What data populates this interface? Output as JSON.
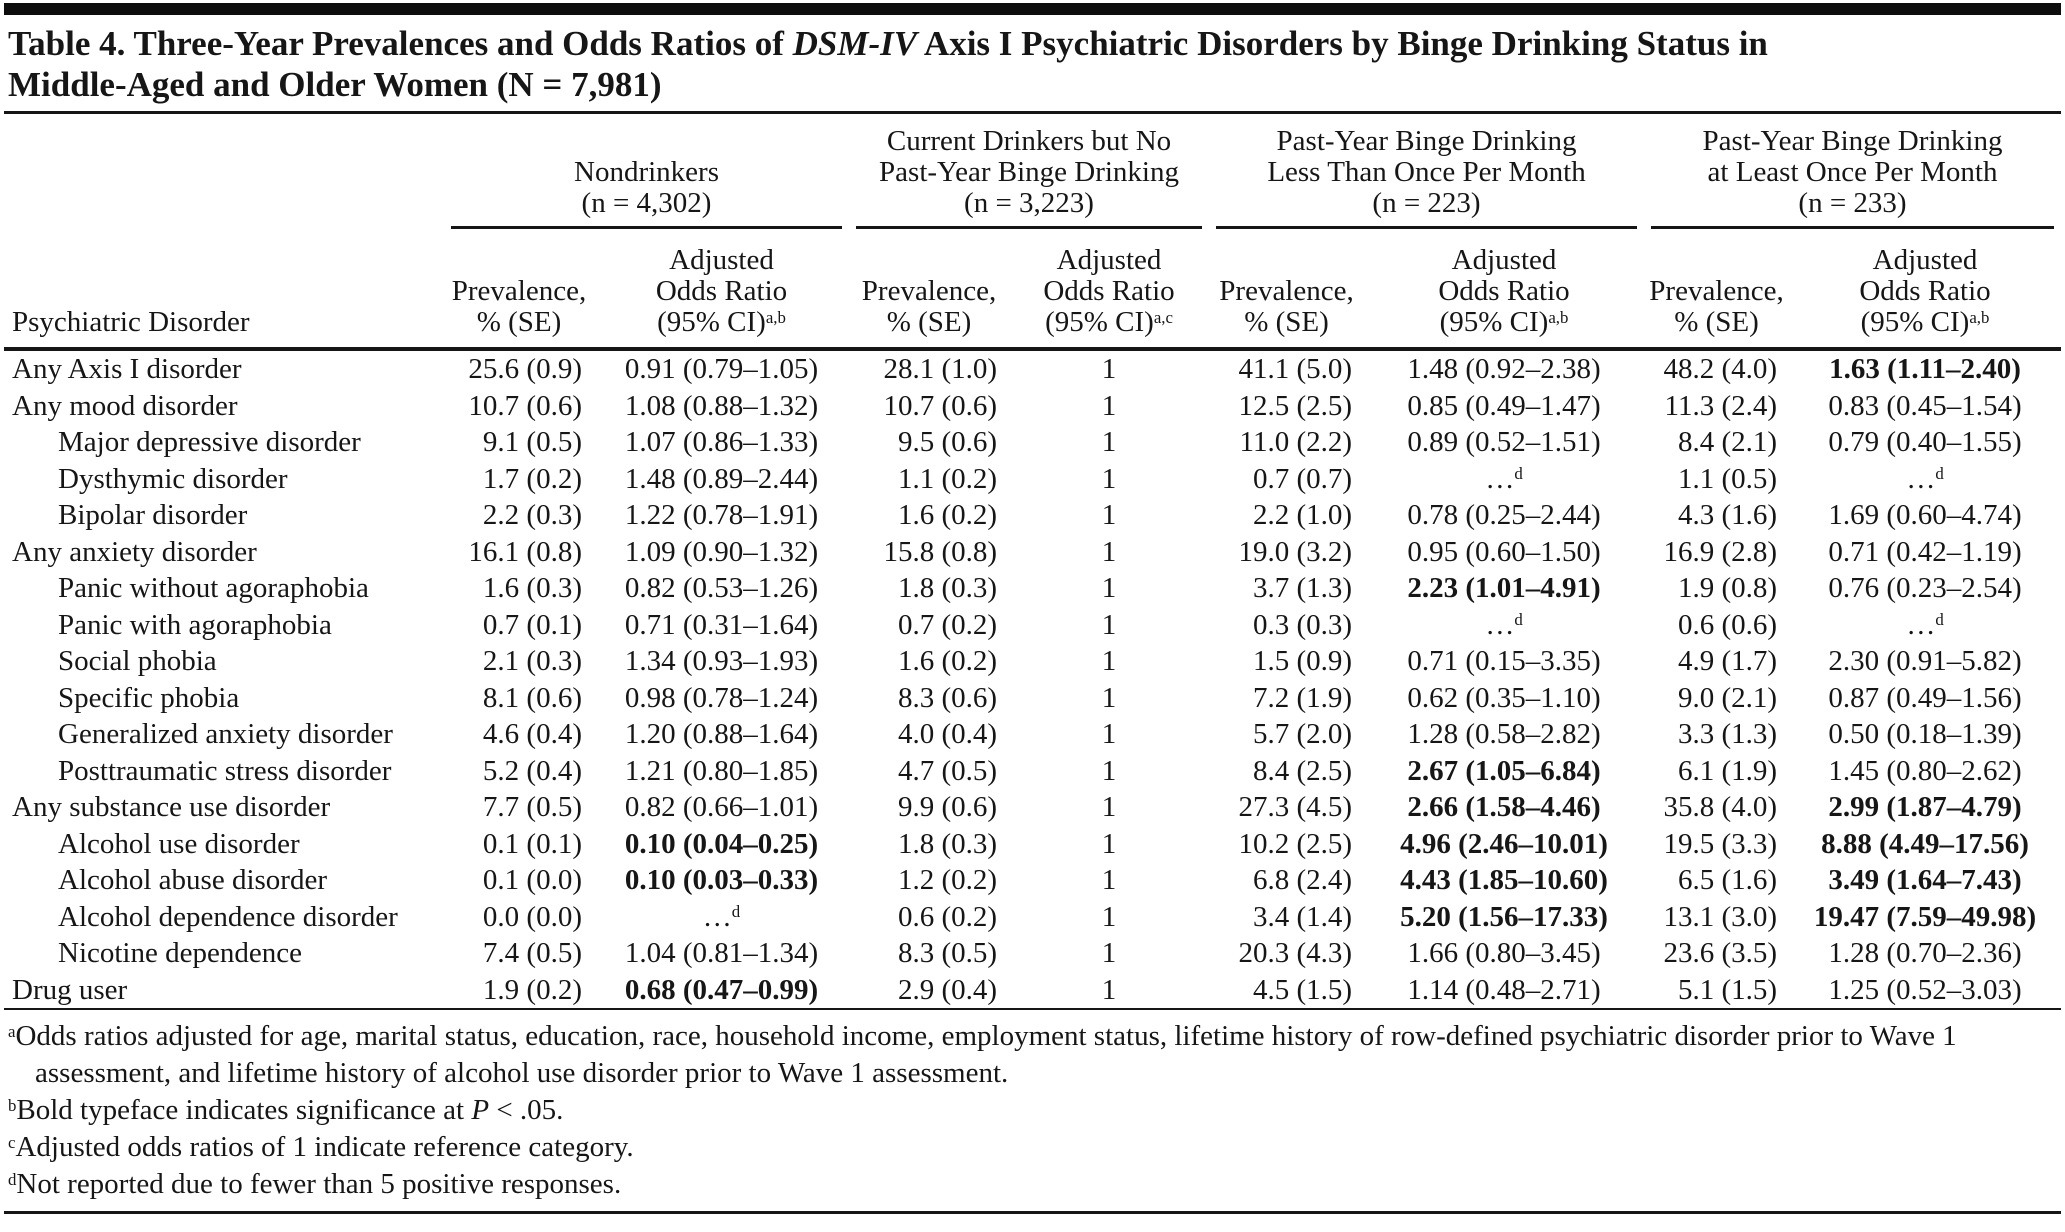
{
  "title": {
    "prefix": "Table 4. Three-Year Prevalences and Odds Ratios of ",
    "italic": "DSM-IV",
    "suffix_line1": " Axis I Psychiatric Disorders by Binge Drinking Status in",
    "line2": "Middle-Aged and Older Women (N = 7,981)"
  },
  "table": {
    "stub_header": "Psychiatric Disorder",
    "col_groups": [
      {
        "lines": [
          "Nondrinkers",
          "(n = 4,302)"
        ],
        "or_sup": "a,b"
      },
      {
        "lines": [
          "Current Drinkers but No",
          "Past-Year Binge Drinking",
          "(n = 3,223)"
        ],
        "or_sup": "a,c"
      },
      {
        "lines": [
          "Past-Year Binge Drinking",
          "Less Than Once Per Month",
          "(n = 223)"
        ],
        "or_sup": "a,b"
      },
      {
        "lines": [
          "Past-Year Binge Drinking",
          "at Least Once Per Month",
          "(n = 233)"
        ],
        "or_sup": "a,b"
      }
    ],
    "sub_headers": {
      "prevalence": [
        "Prevalence,",
        "% (SE)"
      ],
      "odds_ratio": [
        "Adjusted",
        "Odds Ratio",
        "(95% CI)"
      ]
    },
    "rows": [
      {
        "label": "Any Axis I disorder",
        "indent": false,
        "cells": [
          {
            "t": "25.6 (0.9)"
          },
          {
            "t": "0.91 (0.79–1.05)"
          },
          {
            "t": "28.1 (1.0)"
          },
          {
            "t": "1"
          },
          {
            "t": "41.1 (5.0)"
          },
          {
            "t": "1.48 (0.92–2.38)"
          },
          {
            "t": "48.2 (4.0)"
          },
          {
            "t": "1.63 (1.11–2.40)",
            "b": true
          }
        ]
      },
      {
        "label": "Any mood disorder",
        "indent": false,
        "cells": [
          {
            "t": "10.7 (0.6)"
          },
          {
            "t": "1.08 (0.88–1.32)"
          },
          {
            "t": "10.7 (0.6)"
          },
          {
            "t": "1"
          },
          {
            "t": "12.5 (2.5)"
          },
          {
            "t": "0.85 (0.49–1.47)"
          },
          {
            "t": "11.3 (2.4)"
          },
          {
            "t": "0.83 (0.45–1.54)"
          }
        ]
      },
      {
        "label": "Major depressive disorder",
        "indent": true,
        "cells": [
          {
            "t": "9.1 (0.5)"
          },
          {
            "t": "1.07 (0.86–1.33)"
          },
          {
            "t": "9.5 (0.6)"
          },
          {
            "t": "1"
          },
          {
            "t": "11.0 (2.2)"
          },
          {
            "t": "0.89 (0.52–1.51)"
          },
          {
            "t": "8.4 (2.1)"
          },
          {
            "t": "0.79 (0.40–1.55)"
          }
        ]
      },
      {
        "label": "Dysthymic disorder",
        "indent": true,
        "cells": [
          {
            "t": "1.7 (0.2)"
          },
          {
            "t": "1.48 (0.89–2.44)"
          },
          {
            "t": "1.1 (0.2)"
          },
          {
            "t": "1"
          },
          {
            "t": "0.7 (0.7)"
          },
          {
            "t": "…",
            "sup": "d"
          },
          {
            "t": "1.1 (0.5)"
          },
          {
            "t": "…",
            "sup": "d"
          }
        ]
      },
      {
        "label": "Bipolar disorder",
        "indent": true,
        "cells": [
          {
            "t": "2.2 (0.3)"
          },
          {
            "t": "1.22 (0.78–1.91)"
          },
          {
            "t": "1.6 (0.2)"
          },
          {
            "t": "1"
          },
          {
            "t": "2.2 (1.0)"
          },
          {
            "t": "0.78 (0.25–2.44)"
          },
          {
            "t": "4.3 (1.6)"
          },
          {
            "t": "1.69 (0.60–4.74)"
          }
        ]
      },
      {
        "label": "Any anxiety disorder",
        "indent": false,
        "cells": [
          {
            "t": "16.1 (0.8)"
          },
          {
            "t": "1.09 (0.90–1.32)"
          },
          {
            "t": "15.8 (0.8)"
          },
          {
            "t": "1"
          },
          {
            "t": "19.0 (3.2)"
          },
          {
            "t": "0.95 (0.60–1.50)"
          },
          {
            "t": "16.9 (2.8)"
          },
          {
            "t": "0.71 (0.42–1.19)"
          }
        ]
      },
      {
        "label": "Panic without agoraphobia",
        "indent": true,
        "cells": [
          {
            "t": "1.6 (0.3)"
          },
          {
            "t": "0.82 (0.53–1.26)"
          },
          {
            "t": "1.8 (0.3)"
          },
          {
            "t": "1"
          },
          {
            "t": "3.7 (1.3)"
          },
          {
            "t": "2.23 (1.01–4.91)",
            "b": true
          },
          {
            "t": "1.9 (0.8)"
          },
          {
            "t": "0.76 (0.23–2.54)"
          }
        ]
      },
      {
        "label": "Panic with agoraphobia",
        "indent": true,
        "cells": [
          {
            "t": "0.7 (0.1)"
          },
          {
            "t": "0.71 (0.31–1.64)"
          },
          {
            "t": "0.7 (0.2)"
          },
          {
            "t": "1"
          },
          {
            "t": "0.3 (0.3)"
          },
          {
            "t": "…",
            "sup": "d"
          },
          {
            "t": "0.6 (0.6)"
          },
          {
            "t": "…",
            "sup": "d"
          }
        ]
      },
      {
        "label": "Social phobia",
        "indent": true,
        "cells": [
          {
            "t": "2.1 (0.3)"
          },
          {
            "t": "1.34 (0.93–1.93)"
          },
          {
            "t": "1.6 (0.2)"
          },
          {
            "t": "1"
          },
          {
            "t": "1.5 (0.9)"
          },
          {
            "t": "0.71 (0.15–3.35)"
          },
          {
            "t": "4.9 (1.7)"
          },
          {
            "t": "2.30 (0.91–5.82)"
          }
        ]
      },
      {
        "label": "Specific phobia",
        "indent": true,
        "cells": [
          {
            "t": "8.1 (0.6)"
          },
          {
            "t": "0.98 (0.78–1.24)"
          },
          {
            "t": "8.3 (0.6)"
          },
          {
            "t": "1"
          },
          {
            "t": "7.2 (1.9)"
          },
          {
            "t": "0.62 (0.35–1.10)"
          },
          {
            "t": "9.0 (2.1)"
          },
          {
            "t": "0.87 (0.49–1.56)"
          }
        ]
      },
      {
        "label": "Generalized anxiety disorder",
        "indent": true,
        "cells": [
          {
            "t": "4.6 (0.4)"
          },
          {
            "t": "1.20 (0.88–1.64)"
          },
          {
            "t": "4.0 (0.4)"
          },
          {
            "t": "1"
          },
          {
            "t": "5.7 (2.0)"
          },
          {
            "t": "1.28 (0.58–2.82)"
          },
          {
            "t": "3.3 (1.3)"
          },
          {
            "t": "0.50 (0.18–1.39)"
          }
        ]
      },
      {
        "label": "Posttraumatic stress disorder",
        "indent": true,
        "cells": [
          {
            "t": "5.2 (0.4)"
          },
          {
            "t": "1.21 (0.80–1.85)"
          },
          {
            "t": "4.7 (0.5)"
          },
          {
            "t": "1"
          },
          {
            "t": "8.4 (2.5)"
          },
          {
            "t": "2.67 (1.05–6.84)",
            "b": true
          },
          {
            "t": "6.1 (1.9)"
          },
          {
            "t": "1.45 (0.80–2.62)"
          }
        ]
      },
      {
        "label": "Any substance use disorder",
        "indent": false,
        "cells": [
          {
            "t": "7.7 (0.5)"
          },
          {
            "t": "0.82 (0.66–1.01)"
          },
          {
            "t": "9.9 (0.6)"
          },
          {
            "t": "1"
          },
          {
            "t": "27.3 (4.5)"
          },
          {
            "t": "2.66 (1.58–4.46)",
            "b": true
          },
          {
            "t": "35.8 (4.0)"
          },
          {
            "t": "2.99 (1.87–4.79)",
            "b": true
          }
        ]
      },
      {
        "label": "Alcohol use disorder",
        "indent": true,
        "cells": [
          {
            "t": "0.1 (0.1)"
          },
          {
            "t": "0.10 (0.04–0.25)",
            "b": true
          },
          {
            "t": "1.8 (0.3)"
          },
          {
            "t": "1"
          },
          {
            "t": "10.2 (2.5)"
          },
          {
            "t": "4.96 (2.46–10.01)",
            "b": true
          },
          {
            "t": "19.5 (3.3)"
          },
          {
            "t": "8.88 (4.49–17.56)",
            "b": true
          }
        ]
      },
      {
        "label": "Alcohol abuse disorder",
        "indent": true,
        "cells": [
          {
            "t": "0.1 (0.0)"
          },
          {
            "t": "0.10 (0.03–0.33)",
            "b": true
          },
          {
            "t": "1.2 (0.2)"
          },
          {
            "t": "1"
          },
          {
            "t": "6.8 (2.4)"
          },
          {
            "t": "4.43 (1.85–10.60)",
            "b": true
          },
          {
            "t": "6.5 (1.6)"
          },
          {
            "t": "3.49 (1.64–7.43)",
            "b": true
          }
        ]
      },
      {
        "label": "Alcohol dependence disorder",
        "indent": true,
        "cells": [
          {
            "t": "0.0 (0.0)"
          },
          {
            "t": "…",
            "sup": "d"
          },
          {
            "t": "0.6 (0.2)"
          },
          {
            "t": "1"
          },
          {
            "t": "3.4 (1.4)"
          },
          {
            "t": "5.20 (1.56–17.33)",
            "b": true
          },
          {
            "t": "13.1 (3.0)"
          },
          {
            "t": "19.47 (7.59–49.98)",
            "b": true
          }
        ]
      },
      {
        "label": "Nicotine dependence",
        "indent": true,
        "cells": [
          {
            "t": "7.4 (0.5)"
          },
          {
            "t": "1.04 (0.81–1.34)"
          },
          {
            "t": "8.3 (0.5)"
          },
          {
            "t": "1"
          },
          {
            "t": "20.3 (4.3)"
          },
          {
            "t": "1.66 (0.80–3.45)"
          },
          {
            "t": "23.6 (3.5)"
          },
          {
            "t": "1.28 (0.70–2.36)"
          }
        ]
      },
      {
        "label": "Drug user",
        "indent": false,
        "cells": [
          {
            "t": "1.9 (0.2)"
          },
          {
            "t": "0.68 (0.47–0.99)",
            "b": true
          },
          {
            "t": "2.9 (0.4)"
          },
          {
            "t": "1"
          },
          {
            "t": "4.5 (1.5)"
          },
          {
            "t": "1.14 (0.48–2.71)"
          },
          {
            "t": "5.1 (1.5)"
          },
          {
            "t": "1.25 (0.52–3.03)"
          }
        ]
      }
    ],
    "footnotes": [
      {
        "sup": "a",
        "parts": [
          {
            "t": "Odds ratios adjusted for age, marital status, education, race, household income, employment status, lifetime history of row-defined psychiatric disorder prior to Wave 1 assessment, and lifetime history of alcohol use disorder prior to Wave 1 assessment."
          }
        ]
      },
      {
        "sup": "b",
        "parts": [
          {
            "t": "Bold typeface indicates significance at "
          },
          {
            "t": "P",
            "i": true
          },
          {
            "t": " < .05."
          }
        ]
      },
      {
        "sup": "c",
        "parts": [
          {
            "t": "Adjusted odds ratios of 1 indicate reference category."
          }
        ]
      },
      {
        "sup": "d",
        "parts": [
          {
            "t": "Not reported due to fewer than 5 positive responses."
          }
        ]
      }
    ]
  }
}
